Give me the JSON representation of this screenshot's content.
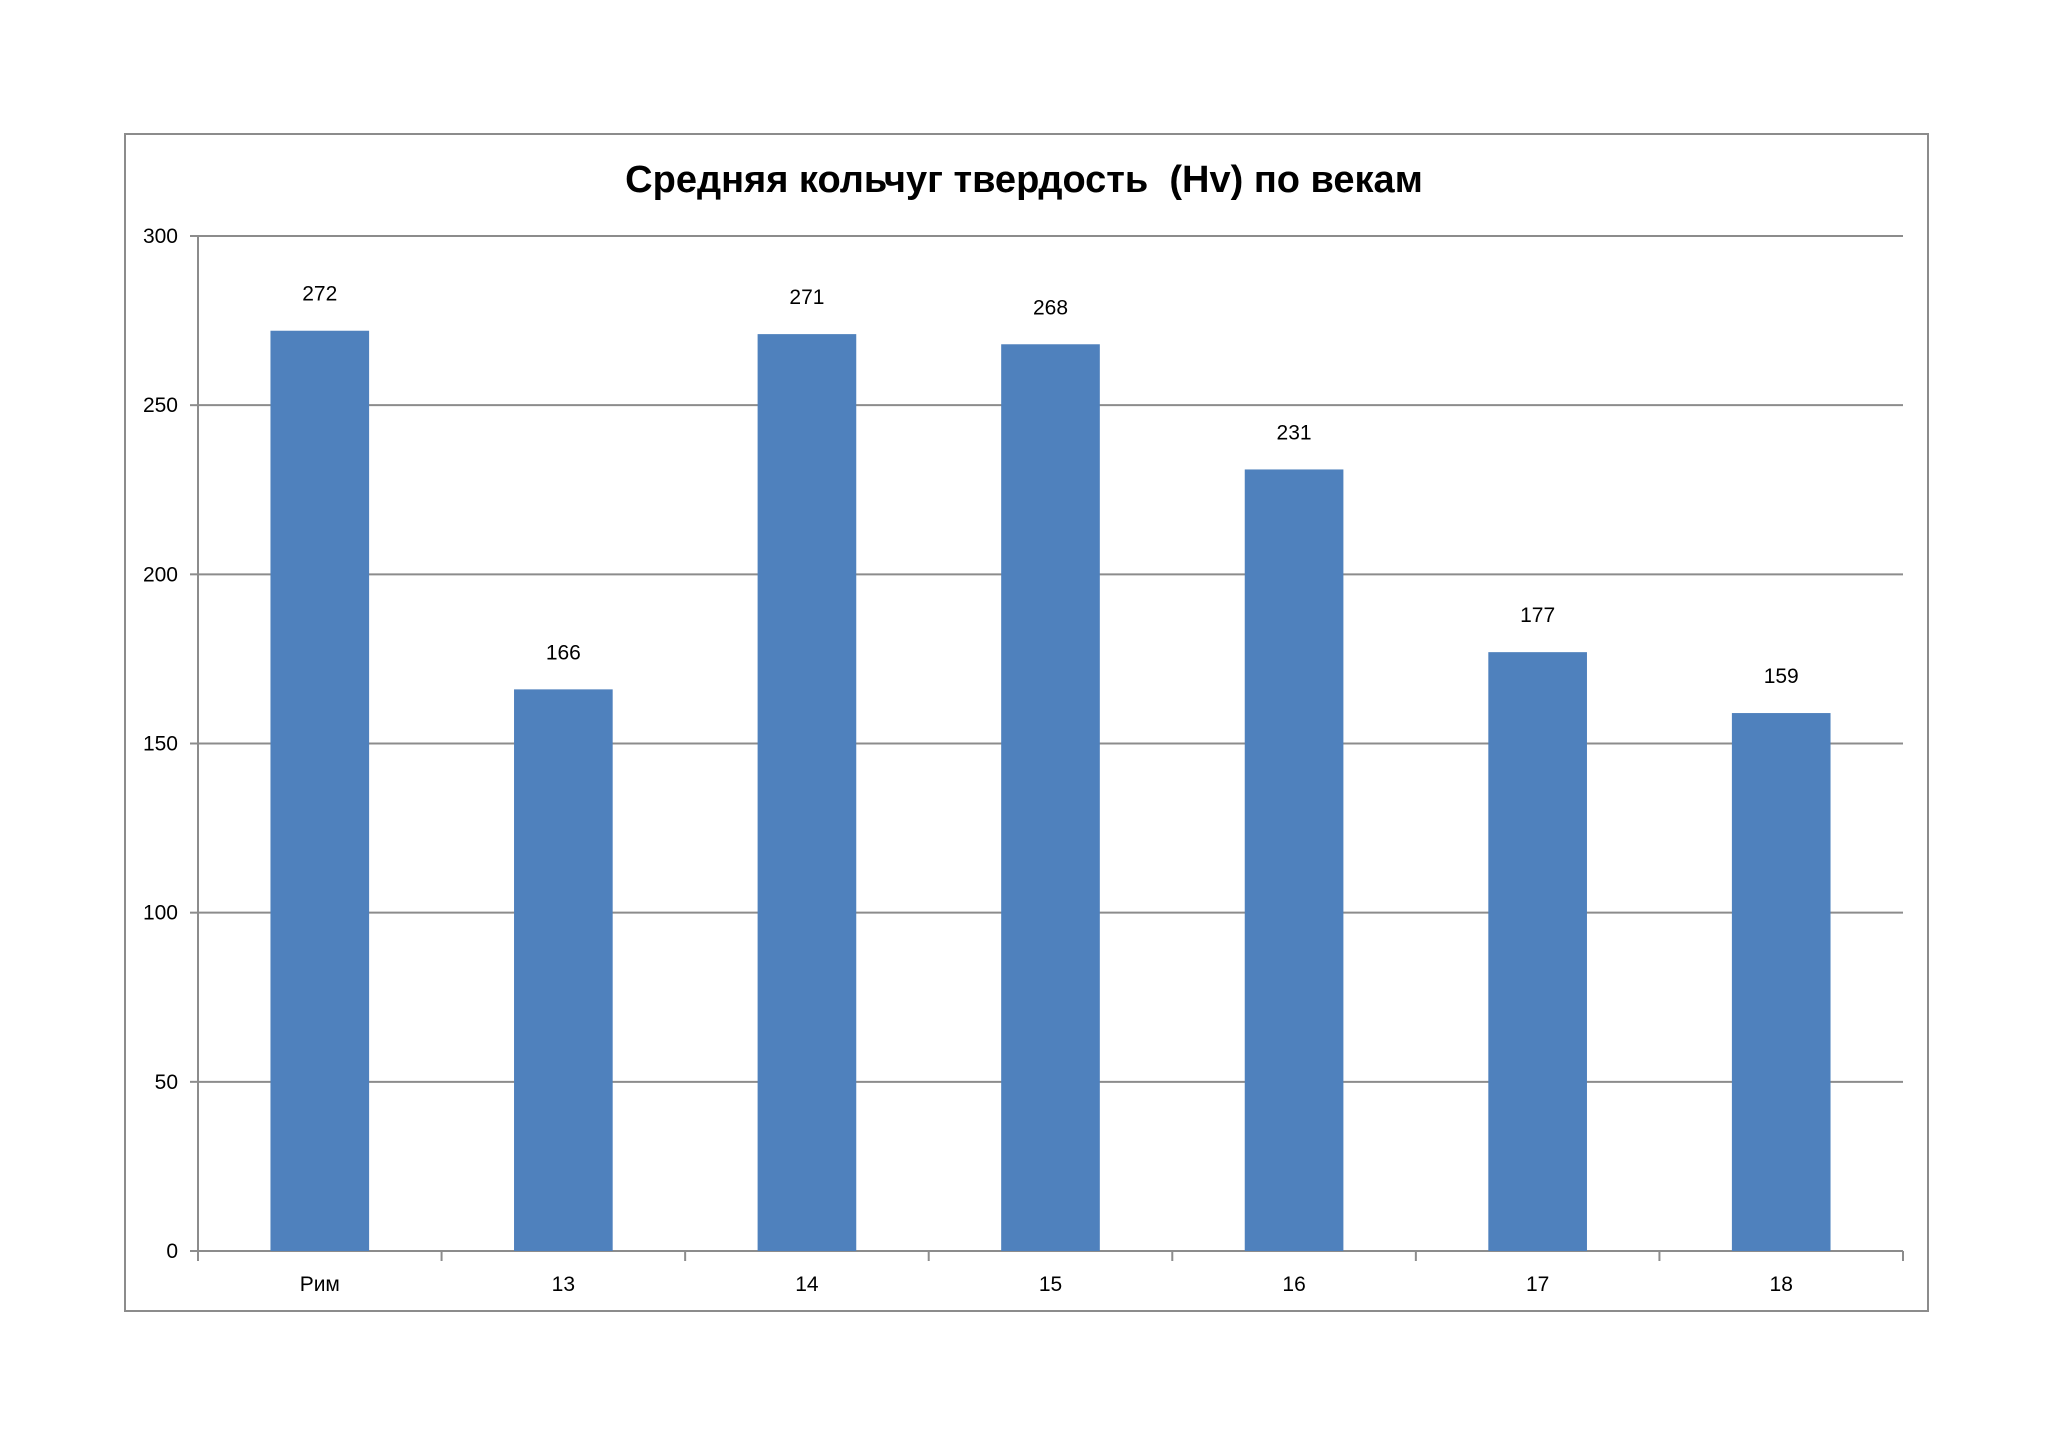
{
  "chart_data": {
    "type": "bar",
    "title": "Средняя кольчуг твердость  (Hv) по векам",
    "categories": [
      "Рим",
      "13",
      "14",
      "15",
      "16",
      "17",
      "18"
    ],
    "values": [
      272,
      166,
      271,
      268,
      231,
      177,
      159
    ],
    "data_labels": [
      "272",
      "166",
      "271",
      "268",
      "231",
      "177",
      "159"
    ],
    "xlabel": "",
    "ylabel": "",
    "ylim": [
      0,
      300
    ],
    "yticks": [
      0,
      50,
      100,
      150,
      200,
      250,
      300
    ],
    "grid": true,
    "legend": "none",
    "bar_color": "#4f81bd"
  }
}
